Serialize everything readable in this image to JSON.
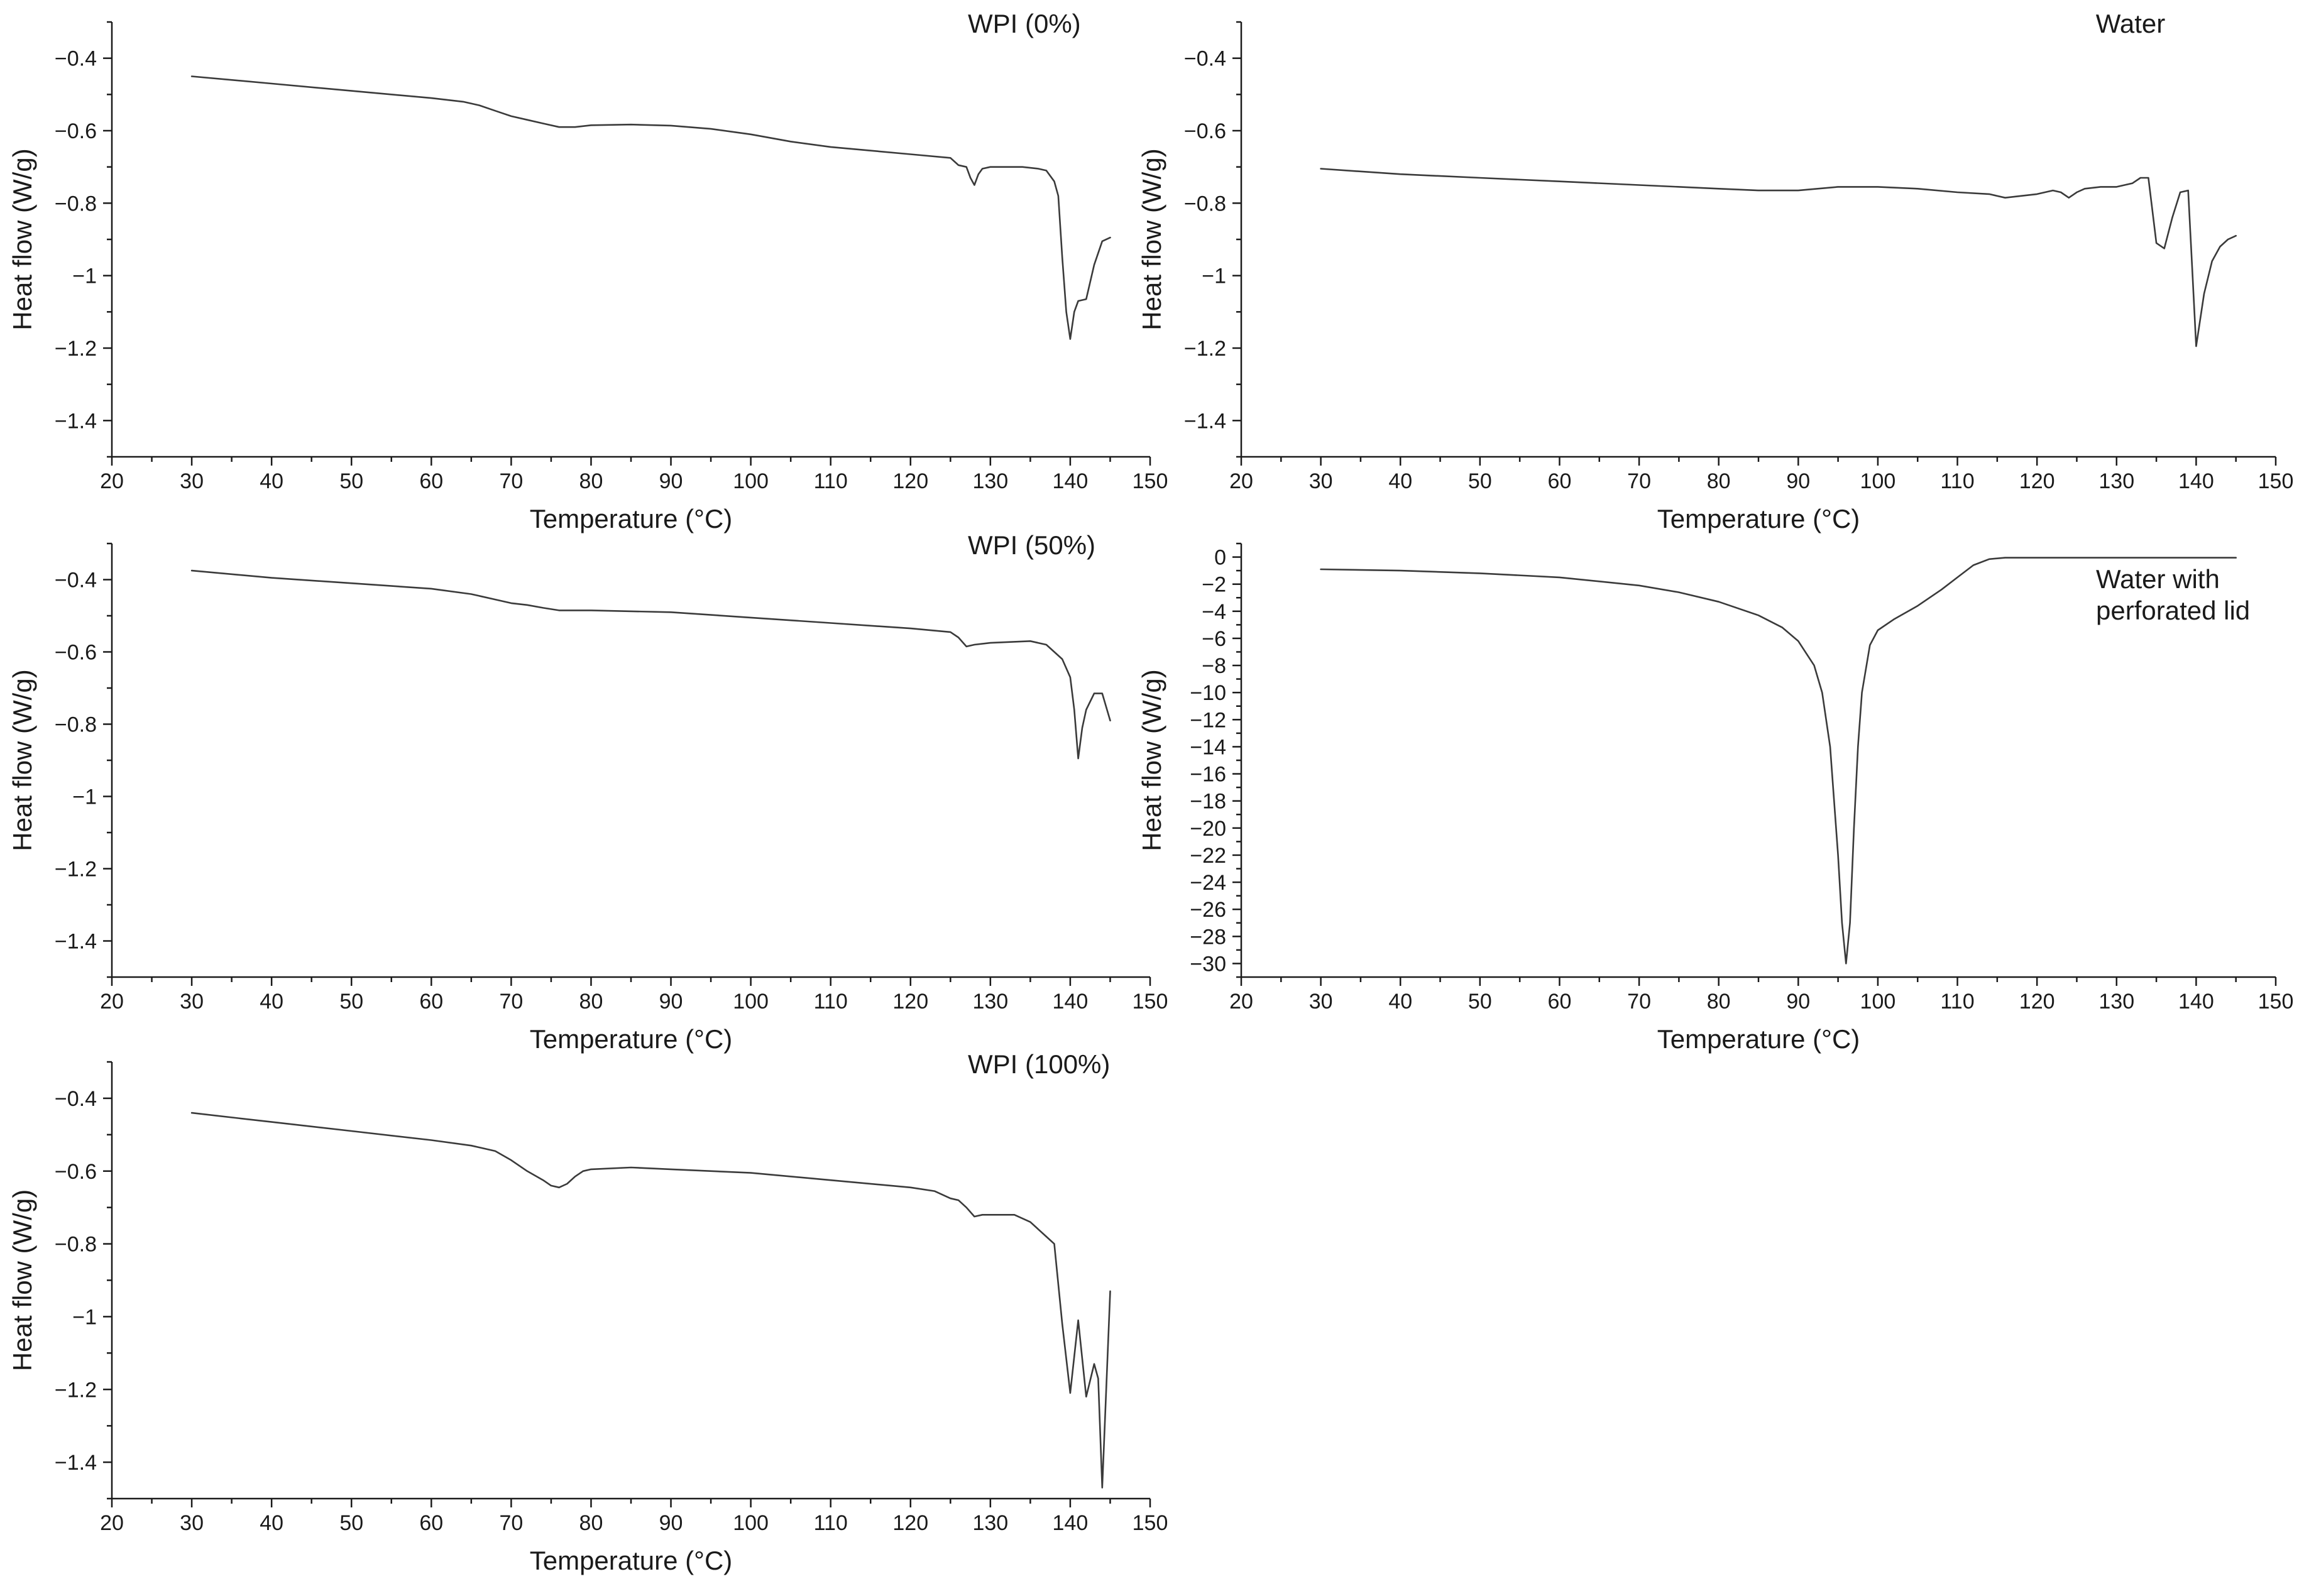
{
  "chart_data": [
    {
      "type": "line",
      "label": "WPI (0%)",
      "xlabel": "Temperature (°C)",
      "ylabel": "Heat flow (W/g)",
      "xlim": [
        20,
        150
      ],
      "ylim": [
        -1.5,
        -0.3
      ],
      "xticks": [
        20,
        30,
        40,
        50,
        60,
        70,
        80,
        90,
        100,
        110,
        120,
        130,
        140,
        150
      ],
      "yticks": [
        -1.4,
        -1.2,
        -1.0,
        -0.8,
        -0.6,
        -0.4
      ],
      "series": [
        {
          "x": [
            30,
            40,
            50,
            60,
            64,
            66,
            68,
            70,
            72,
            74,
            76,
            78,
            80,
            85,
            90,
            95,
            100,
            105,
            110,
            115,
            120,
            125,
            126,
            127,
            127.5,
            128,
            128.5,
            129,
            130,
            132,
            134,
            136,
            137,
            138,
            138.5,
            139,
            139.5,
            140,
            140.5,
            141,
            142,
            143,
            144,
            145
          ],
          "y": [
            -0.45,
            -0.47,
            -0.49,
            -0.51,
            -0.52,
            -0.53,
            -0.545,
            -0.56,
            -0.57,
            -0.58,
            -0.59,
            -0.59,
            -0.585,
            -0.583,
            -0.586,
            -0.595,
            -0.61,
            -0.63,
            -0.645,
            -0.655,
            -0.665,
            -0.675,
            -0.695,
            -0.7,
            -0.73,
            -0.75,
            -0.72,
            -0.705,
            -0.7,
            -0.7,
            -0.7,
            -0.705,
            -0.71,
            -0.74,
            -0.78,
            -0.95,
            -1.1,
            -1.175,
            -1.1,
            -1.07,
            -1.065,
            -0.97,
            -0.905,
            -0.895
          ]
        }
      ]
    },
    {
      "type": "line",
      "label": "Water",
      "xlabel": "Temperature (°C)",
      "ylabel": "Heat flow (W/g)",
      "xlim": [
        20,
        150
      ],
      "ylim": [
        -1.5,
        -0.3
      ],
      "xticks": [
        20,
        30,
        40,
        50,
        60,
        70,
        80,
        90,
        100,
        110,
        120,
        130,
        140,
        150
      ],
      "yticks": [
        -1.4,
        -1.2,
        -1.0,
        -0.8,
        -0.6,
        -0.4
      ],
      "series": [
        {
          "x": [
            30,
            40,
            50,
            60,
            70,
            80,
            85,
            90,
            95,
            100,
            105,
            110,
            114,
            116,
            118,
            120,
            122,
            123,
            124,
            125,
            126,
            128,
            130,
            132,
            133,
            134,
            135,
            136,
            137,
            138,
            139,
            139.5,
            140,
            141,
            142,
            143,
            144,
            145
          ],
          "y": [
            -0.705,
            -0.72,
            -0.73,
            -0.74,
            -0.75,
            -0.76,
            -0.765,
            -0.765,
            -0.755,
            -0.755,
            -0.76,
            -0.77,
            -0.775,
            -0.785,
            -0.78,
            -0.775,
            -0.765,
            -0.77,
            -0.785,
            -0.77,
            -0.76,
            -0.755,
            -0.755,
            -0.745,
            -0.73,
            -0.73,
            -0.91,
            -0.925,
            -0.84,
            -0.77,
            -0.765,
            -0.98,
            -1.195,
            -1.05,
            -0.96,
            -0.92,
            -0.9,
            -0.89
          ]
        }
      ]
    },
    {
      "type": "line",
      "label": "WPI (50%)",
      "xlabel": "Temperature (°C)",
      "ylabel": "Heat flow (W/g)",
      "xlim": [
        20,
        150
      ],
      "ylim": [
        -1.5,
        -0.3
      ],
      "xticks": [
        20,
        30,
        40,
        50,
        60,
        70,
        80,
        90,
        100,
        110,
        120,
        130,
        140,
        150
      ],
      "yticks": [
        -1.4,
        -1.2,
        -1.0,
        -0.8,
        -0.6,
        -0.4
      ],
      "series": [
        {
          "x": [
            30,
            40,
            50,
            60,
            65,
            68,
            70,
            72,
            74,
            76,
            78,
            80,
            90,
            100,
            110,
            120,
            125,
            126,
            127,
            128,
            130,
            135,
            137,
            138,
            139,
            140,
            140.5,
            141,
            141.5,
            142,
            143,
            144,
            145
          ],
          "y": [
            -0.375,
            -0.395,
            -0.41,
            -0.425,
            -0.44,
            -0.455,
            -0.465,
            -0.47,
            -0.478,
            -0.485,
            -0.485,
            -0.485,
            -0.49,
            -0.505,
            -0.52,
            -0.535,
            -0.545,
            -0.56,
            -0.585,
            -0.58,
            -0.575,
            -0.57,
            -0.58,
            -0.6,
            -0.62,
            -0.67,
            -0.76,
            -0.895,
            -0.81,
            -0.76,
            -0.715,
            -0.715,
            -0.79
          ]
        }
      ]
    },
    {
      "type": "line",
      "label": "Water with perforated lid",
      "xlabel": "Temperature (°C)",
      "ylabel": "Heat flow (W/g)",
      "xlim": [
        20,
        150
      ],
      "ylim": [
        -31,
        1
      ],
      "xticks": [
        20,
        30,
        40,
        50,
        60,
        70,
        80,
        90,
        100,
        110,
        120,
        130,
        140,
        150
      ],
      "yticks": [
        0,
        -2,
        -4,
        -6,
        -8,
        -10,
        -12,
        -14,
        -16,
        -18,
        -20,
        -22,
        -24,
        -26,
        -28,
        -30
      ],
      "series": [
        {
          "x": [
            30,
            40,
            50,
            60,
            70,
            75,
            80,
            85,
            88,
            90,
            92,
            93,
            94,
            95,
            95.5,
            96,
            96.5,
            97,
            97.5,
            98,
            99,
            100,
            102,
            105,
            108,
            110,
            112,
            114,
            116,
            120,
            130,
            140,
            145
          ],
          "y": [
            -0.9,
            -1.0,
            -1.2,
            -1.5,
            -2.1,
            -2.6,
            -3.3,
            -4.3,
            -5.2,
            -6.2,
            -8.0,
            -10.0,
            -14.0,
            -22.0,
            -27.0,
            -30.0,
            -27.0,
            -20.0,
            -14.0,
            -10.0,
            -6.5,
            -5.4,
            -4.6,
            -3.6,
            -2.4,
            -1.5,
            -0.6,
            -0.15,
            -0.05,
            -0.05,
            -0.05,
            -0.05,
            -0.05
          ]
        }
      ]
    },
    {
      "type": "line",
      "label": "WPI (100%)",
      "xlabel": "Temperature (°C)",
      "ylabel": "Heat flow (W/g)",
      "xlim": [
        20,
        150
      ],
      "ylim": [
        -1.5,
        -0.3
      ],
      "xticks": [
        20,
        30,
        40,
        50,
        60,
        70,
        80,
        90,
        100,
        110,
        120,
        130,
        140,
        150
      ],
      "yticks": [
        -1.4,
        -1.2,
        -1.0,
        -0.8,
        -0.6,
        -0.4
      ],
      "series": [
        {
          "x": [
            30,
            40,
            50,
            60,
            65,
            68,
            70,
            72,
            74,
            75,
            76,
            77,
            78,
            79,
            80,
            85,
            90,
            100,
            110,
            120,
            123,
            125,
            126,
            127,
            128,
            129,
            130,
            133,
            135,
            136,
            137,
            138,
            139,
            140,
            141,
            142,
            143,
            143.5,
            144,
            145
          ],
          "y": [
            -0.44,
            -0.465,
            -0.49,
            -0.515,
            -0.53,
            -0.545,
            -0.57,
            -0.6,
            -0.625,
            -0.64,
            -0.645,
            -0.635,
            -0.615,
            -0.6,
            -0.595,
            -0.59,
            -0.595,
            -0.605,
            -0.625,
            -0.645,
            -0.655,
            -0.675,
            -0.68,
            -0.7,
            -0.725,
            -0.72,
            -0.72,
            -0.72,
            -0.74,
            -0.76,
            -0.78,
            -0.8,
            -1.02,
            -1.21,
            -1.01,
            -1.22,
            -1.13,
            -1.17,
            -1.47,
            -0.93
          ]
        }
      ]
    }
  ]
}
